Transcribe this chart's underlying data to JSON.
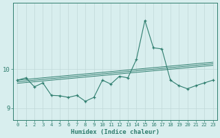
{
  "x": [
    0,
    1,
    2,
    3,
    4,
    5,
    6,
    7,
    8,
    9,
    10,
    11,
    12,
    13,
    14,
    15,
    16,
    17,
    18,
    19,
    20,
    21,
    22,
    23
  ],
  "y_main": [
    9.72,
    9.78,
    9.55,
    9.65,
    9.33,
    9.32,
    9.28,
    9.33,
    9.18,
    9.28,
    9.72,
    9.62,
    9.82,
    9.78,
    10.25,
    11.25,
    10.55,
    10.52,
    9.72,
    9.58,
    9.5,
    9.58,
    9.65,
    9.72
  ],
  "y_line1": [
    9.72,
    9.74,
    9.76,
    9.78,
    9.8,
    9.82,
    9.84,
    9.86,
    9.88,
    9.9,
    9.92,
    9.94,
    9.96,
    9.98,
    10.0,
    10.02,
    10.04,
    10.06,
    10.08,
    10.1,
    10.12,
    10.14,
    10.16,
    10.18
  ],
  "y_line2": [
    9.68,
    9.7,
    9.72,
    9.74,
    9.76,
    9.78,
    9.8,
    9.82,
    9.84,
    9.86,
    9.88,
    9.9,
    9.92,
    9.94,
    9.96,
    9.98,
    10.0,
    10.02,
    10.04,
    10.06,
    10.08,
    10.1,
    10.12,
    10.14
  ],
  "y_line3": [
    9.64,
    9.66,
    9.68,
    9.7,
    9.72,
    9.74,
    9.76,
    9.78,
    9.8,
    9.82,
    9.84,
    9.86,
    9.88,
    9.9,
    9.92,
    9.94,
    9.96,
    9.98,
    10.0,
    10.02,
    10.04,
    10.06,
    10.08,
    10.1
  ],
  "bg_color": "#d8eeee",
  "line_color": "#2e7d6e",
  "grid_color": "#c0d8d8",
  "axis_color": "#2e7d6e",
  "xlabel": "Humidex (Indice chaleur)",
  "ylim": [
    8.7,
    11.7
  ],
  "xlim": [
    -0.5,
    23.5
  ],
  "yticks": [
    9,
    10
  ],
  "xticks": [
    0,
    1,
    2,
    3,
    4,
    5,
    6,
    7,
    8,
    9,
    10,
    11,
    12,
    13,
    14,
    15,
    16,
    17,
    18,
    19,
    20,
    21,
    22,
    23
  ]
}
